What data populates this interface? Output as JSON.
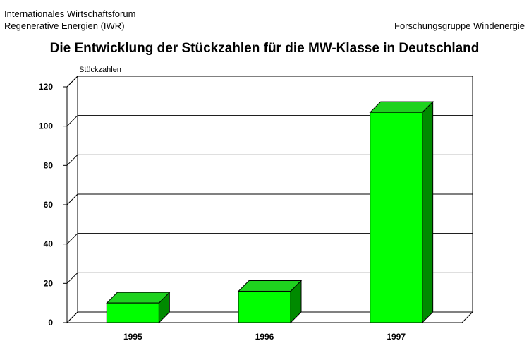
{
  "header": {
    "org_line1": "Internationales Wirtschaftsforum",
    "org_line2": "Regenerative Energien (IWR)",
    "group": "Forschungsgruppe Windenergie"
  },
  "colors": {
    "header_rule": "#e03a3a",
    "bar_front": "#00ff00",
    "bar_top": "#1fd21f",
    "bar_side": "#008a00"
  },
  "chart_data": {
    "type": "bar",
    "title": "Die Entwicklung der Stückzahlen für die MW-Klasse in Deutschland",
    "ylabel": "Stückzahlen",
    "xlabel": "",
    "categories": [
      "1995",
      "1996",
      "1997"
    ],
    "values": [
      10,
      16,
      107
    ],
    "ylim": [
      0,
      120
    ],
    "yticks": [
      0,
      20,
      40,
      60,
      80,
      100,
      120
    ],
    "grid": true,
    "style": "3d"
  }
}
